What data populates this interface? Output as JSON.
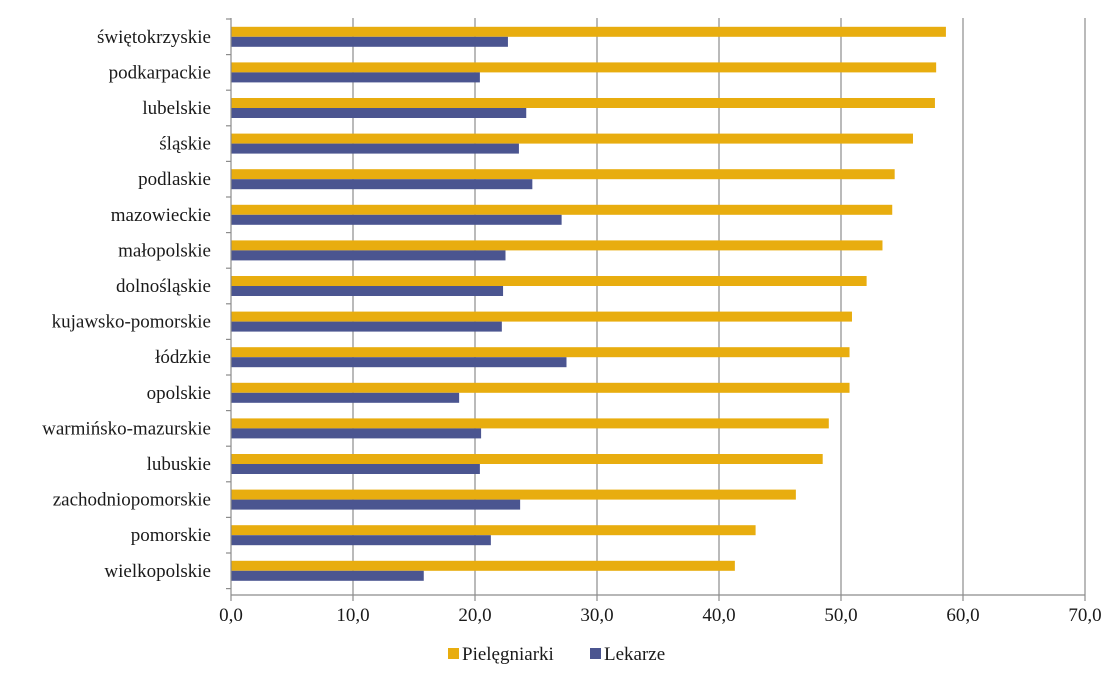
{
  "chart_data": {
    "type": "bar",
    "orientation": "horizontal",
    "categories": [
      "świętokrzyskie",
      "podkarpackie",
      "lubelskie",
      "śląskie",
      "podlaskie",
      "mazowieckie",
      "małopolskie",
      "dolnośląskie",
      "kujawsko-pomorskie",
      "łódzkie",
      "opolskie",
      "warmińsko-mazurskie",
      "lubuskie",
      "zachodniopomorskie",
      "pomorskie",
      "wielkopolskie"
    ],
    "series": [
      {
        "name": "Pielęgniarki",
        "color": "#E8AD0F",
        "values": [
          58.6,
          57.8,
          57.7,
          55.9,
          54.4,
          54.2,
          53.4,
          52.1,
          50.9,
          50.7,
          50.7,
          49.0,
          48.5,
          46.3,
          43.0,
          41.3
        ]
      },
      {
        "name": "Lekarze",
        "color": "#4B5590",
        "values": [
          22.7,
          20.4,
          24.2,
          23.6,
          24.7,
          27.1,
          22.5,
          22.3,
          22.2,
          27.5,
          18.7,
          20.5,
          20.4,
          23.7,
          21.3,
          15.8
        ]
      }
    ],
    "xlim": [
      0,
      70
    ],
    "x_ticks": [
      "0,0",
      "10,0",
      "20,0",
      "30,0",
      "40,0",
      "50,0",
      "60,0",
      "70,0"
    ],
    "grid": true,
    "legend_position": "bottom",
    "title": "",
    "xlabel": "",
    "ylabel": ""
  }
}
